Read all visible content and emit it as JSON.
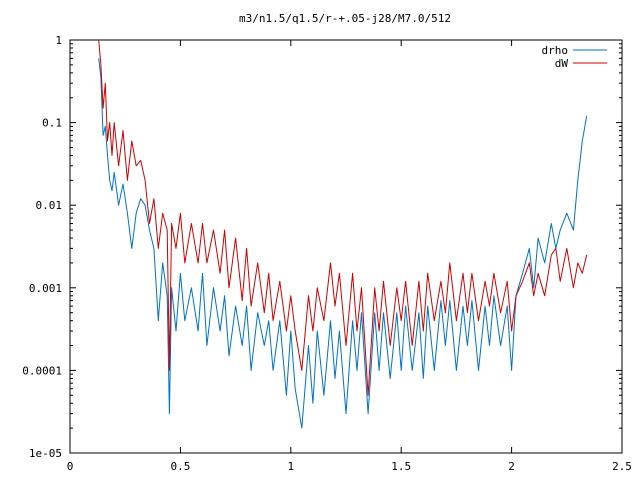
{
  "chart_data": {
    "type": "line",
    "title": "m3/n1.5/q1.5/r-+.05-j28/M7.0/512",
    "xlabel": "",
    "ylabel": "",
    "xlim": [
      0,
      2.5
    ],
    "ylim": [
      1e-05,
      1
    ],
    "yscale": "log",
    "grid": false,
    "legend_position": "top-right",
    "x_ticks": [
      0,
      0.5,
      1,
      1.5,
      2,
      2.5
    ],
    "x_tick_labels": [
      "0",
      "0.5",
      "1",
      "1.5",
      "2",
      "2.5"
    ],
    "y_ticks": [
      1,
      0.1,
      0.01,
      0.001,
      0.0001,
      1e-05
    ],
    "y_tick_labels": [
      "1",
      "0.1",
      "0.01",
      "0.001",
      "0.0001",
      "1e-05"
    ],
    "series": [
      {
        "name": "drho",
        "color": "#0072c8",
        "x": [
          0.13,
          0.14,
          0.15,
          0.16,
          0.17,
          0.18,
          0.19,
          0.2,
          0.22,
          0.24,
          0.26,
          0.28,
          0.3,
          0.32,
          0.34,
          0.36,
          0.38,
          0.4,
          0.42,
          0.44,
          0.45,
          0.46,
          0.48,
          0.5,
          0.52,
          0.55,
          0.58,
          0.6,
          0.62,
          0.65,
          0.68,
          0.7,
          0.72,
          0.75,
          0.78,
          0.8,
          0.82,
          0.85,
          0.88,
          0.9,
          0.92,
          0.95,
          0.98,
          1.0,
          1.02,
          1.05,
          1.08,
          1.1,
          1.12,
          1.15,
          1.18,
          1.2,
          1.22,
          1.25,
          1.28,
          1.3,
          1.32,
          1.35,
          1.38,
          1.4,
          1.42,
          1.45,
          1.48,
          1.5,
          1.52,
          1.55,
          1.58,
          1.6,
          1.62,
          1.65,
          1.68,
          1.7,
          1.72,
          1.75,
          1.78,
          1.8,
          1.82,
          1.85,
          1.88,
          1.9,
          1.92,
          1.95,
          1.98,
          2.0,
          2.02,
          2.05,
          2.08,
          2.1,
          2.12,
          2.15,
          2.18,
          2.2,
          2.22,
          2.25,
          2.28,
          2.3,
          2.32,
          2.34
        ],
        "y": [
          0.6,
          0.35,
          0.07,
          0.09,
          0.04,
          0.02,
          0.015,
          0.025,
          0.01,
          0.018,
          0.008,
          0.003,
          0.008,
          0.012,
          0.01,
          0.005,
          0.003,
          0.0004,
          0.002,
          0.0008,
          3e-05,
          0.001,
          0.0003,
          0.0015,
          0.0004,
          0.001,
          0.0003,
          0.0015,
          0.0002,
          0.001,
          0.0003,
          0.0008,
          0.00015,
          0.0006,
          0.0002,
          0.0006,
          0.0001,
          0.0005,
          0.0002,
          0.0004,
          0.0001,
          0.0004,
          5e-05,
          0.0003,
          6e-05,
          2e-05,
          0.0002,
          4e-05,
          0.0003,
          5e-05,
          0.0004,
          8e-05,
          0.0003,
          3e-05,
          0.0004,
          0.0001,
          0.0005,
          3e-05,
          0.0005,
          0.0001,
          0.0005,
          8e-05,
          0.0005,
          0.0001,
          0.0006,
          0.0001,
          0.0005,
          8e-05,
          0.0006,
          0.0001,
          0.0007,
          0.0002,
          0.0007,
          0.0001,
          0.0006,
          0.0002,
          0.0007,
          0.0001,
          0.0006,
          0.0002,
          0.0008,
          0.0002,
          0.0006,
          0.0001,
          0.0008,
          0.0015,
          0.003,
          0.001,
          0.004,
          0.002,
          0.006,
          0.003,
          0.005,
          0.008,
          0.005,
          0.02,
          0.06,
          0.12
        ]
      },
      {
        "name": "dW",
        "color": "#d00000",
        "x": [
          0.13,
          0.14,
          0.15,
          0.16,
          0.17,
          0.18,
          0.19,
          0.2,
          0.22,
          0.24,
          0.26,
          0.28,
          0.3,
          0.32,
          0.34,
          0.36,
          0.38,
          0.4,
          0.42,
          0.44,
          0.45,
          0.46,
          0.48,
          0.5,
          0.52,
          0.55,
          0.58,
          0.6,
          0.62,
          0.65,
          0.68,
          0.7,
          0.72,
          0.75,
          0.78,
          0.8,
          0.82,
          0.85,
          0.88,
          0.9,
          0.92,
          0.95,
          0.98,
          1.0,
          1.02,
          1.05,
          1.08,
          1.1,
          1.12,
          1.15,
          1.18,
          1.2,
          1.22,
          1.25,
          1.28,
          1.3,
          1.32,
          1.35,
          1.38,
          1.4,
          1.42,
          1.45,
          1.48,
          1.5,
          1.52,
          1.55,
          1.58,
          1.6,
          1.62,
          1.65,
          1.68,
          1.7,
          1.72,
          1.75,
          1.78,
          1.8,
          1.82,
          1.85,
          1.88,
          1.9,
          1.92,
          1.95,
          1.98,
          2.0,
          2.02,
          2.05,
          2.08,
          2.1,
          2.12,
          2.15,
          2.18,
          2.2,
          2.22,
          2.25,
          2.28,
          2.3,
          2.32,
          2.34
        ],
        "y": [
          1.0,
          0.5,
          0.15,
          0.3,
          0.06,
          0.1,
          0.04,
          0.1,
          0.03,
          0.08,
          0.02,
          0.06,
          0.03,
          0.035,
          0.02,
          0.006,
          0.012,
          0.003,
          0.008,
          0.005,
          0.0001,
          0.006,
          0.003,
          0.008,
          0.002,
          0.006,
          0.002,
          0.006,
          0.002,
          0.005,
          0.0015,
          0.005,
          0.001,
          0.004,
          0.0007,
          0.003,
          0.0006,
          0.002,
          0.0005,
          0.0015,
          0.0004,
          0.0012,
          0.0003,
          0.0008,
          0.0003,
          0.0001,
          0.0008,
          0.0003,
          0.001,
          0.0004,
          0.002,
          0.0006,
          0.0015,
          0.0002,
          0.0015,
          0.0003,
          0.001,
          5e-05,
          0.001,
          0.0003,
          0.0012,
          0.0002,
          0.001,
          0.0004,
          0.0012,
          0.0002,
          0.0012,
          0.0003,
          0.0015,
          0.0004,
          0.0012,
          0.0005,
          0.002,
          0.0004,
          0.0015,
          0.0005,
          0.0015,
          0.0004,
          0.0012,
          0.0006,
          0.0015,
          0.0005,
          0.0012,
          0.0003,
          0.0008,
          0.0012,
          0.002,
          0.0008,
          0.0015,
          0.0008,
          0.0025,
          0.003,
          0.0012,
          0.003,
          0.001,
          0.002,
          0.0015,
          0.0025
        ]
      }
    ]
  }
}
